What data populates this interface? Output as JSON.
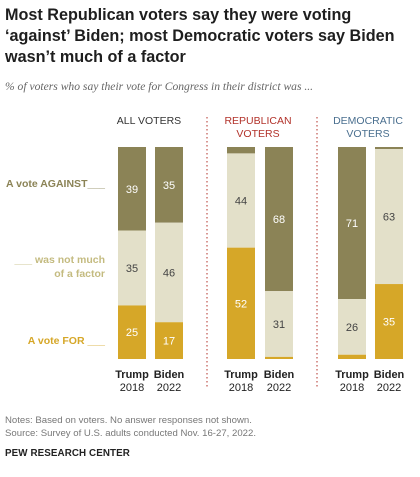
{
  "header": {
    "title": "Most Republican voters say they were voting ‘against’ Biden; most Democratic voters say Biden wasn’t much of a factor",
    "subtitle": "% of voters who say their vote for Congress in their district was ..."
  },
  "chart_data": {
    "type": "bar",
    "stacked": true,
    "ylim": [
      0,
      100
    ],
    "grid": false,
    "category_labels": {
      "against": "A vote AGAINST___",
      "not_factor_line1": "___ was not much",
      "not_factor_line2": "of a factor",
      "for": "A vote FOR ___"
    },
    "groups": [
      {
        "name": "ALL VOTERS",
        "name_line1": "ALL VOTERS",
        "name_line2": "",
        "color": "#333333",
        "bars": [
          {
            "label_line1": "Trump",
            "label_line2": "2018",
            "against": 39,
            "not_factor": 35,
            "for": 25
          },
          {
            "label_line1": "Biden",
            "label_line2": "2022",
            "against": 35,
            "not_factor": 46,
            "for": 17
          }
        ]
      },
      {
        "name": "REPUBLICAN VOTERS",
        "name_line1": "REPUBLICAN",
        "name_line2": "VOTERS",
        "color": "#b2322a",
        "bars": [
          {
            "label_line1": "Trump",
            "label_line2": "2018",
            "against": 3,
            "not_factor": 44,
            "for": 52
          },
          {
            "label_line1": "Biden",
            "label_line2": "2022",
            "against": 68,
            "not_factor": 31,
            "for": 1
          }
        ]
      },
      {
        "name": "DEMOCRATIC VOTERS",
        "name_line1": "DEMOCRATIC",
        "name_line2": "VOTERS",
        "color": "#4a6f8f",
        "bars": [
          {
            "label_line1": "Trump",
            "label_line2": "2018",
            "against": 71,
            "not_factor": 26,
            "for": 2
          },
          {
            "label_line1": "Biden",
            "label_line2": "2022",
            "against": 1,
            "not_factor": 63,
            "for": 35
          }
        ]
      }
    ],
    "colors": {
      "against": "#8b8356",
      "not_factor": "#e3e0c9",
      "for": "#d6a728",
      "label_against": "#8b8356",
      "label_not_factor": "#c4bb80",
      "label_for": "#d6a728",
      "separator": "#b2322a"
    }
  },
  "footer": {
    "notes": "Notes: Based on voters. No answer responses not shown.",
    "source": "Source: Survey of U.S. adults conducted Nov. 16-27, 2022.",
    "brand": "PEW RESEARCH CENTER"
  }
}
